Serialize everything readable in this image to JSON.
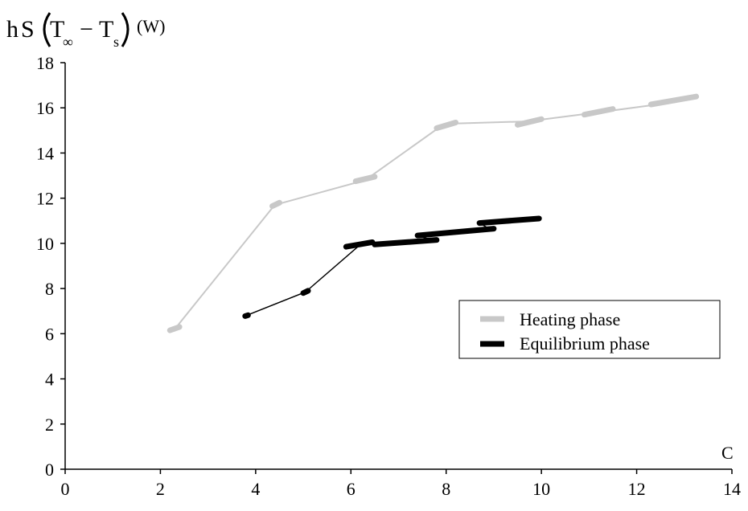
{
  "chart_data": {
    "type": "line",
    "title": "",
    "ylabel": {
      "h": "h",
      "S": "S",
      "T1": "T",
      "sub1": "∞",
      "minus": "−",
      "T2": "T",
      "sub2": "s",
      "unit": "(W)"
    },
    "xlabel": "C",
    "xlim": [
      0,
      14
    ],
    "ylim": [
      0,
      18
    ],
    "x_ticks": [
      0,
      2,
      4,
      6,
      8,
      10,
      12,
      14
    ],
    "y_ticks": [
      0,
      2,
      4,
      6,
      8,
      10,
      12,
      14,
      16,
      18
    ],
    "grid": false,
    "legend_position": "right",
    "series": [
      {
        "name": "Heating phase",
        "color": "#c8c8c8",
        "connector": [
          [
            2.3,
            6.2
          ],
          [
            4.4,
            11.7
          ],
          [
            6.3,
            12.8
          ],
          [
            7.9,
            15.2
          ],
          [
            8.1,
            15.3
          ],
          [
            9.7,
            15.4
          ],
          [
            11.2,
            15.8
          ],
          [
            12.8,
            16.25
          ],
          [
            13.25,
            16.5
          ]
        ],
        "segments": [
          [
            [
              2.2,
              6.15
            ],
            [
              2.4,
              6.3
            ]
          ],
          [
            [
              4.35,
              11.65
            ],
            [
              4.5,
              11.8
            ]
          ],
          [
            [
              6.1,
              12.75
            ],
            [
              6.5,
              12.95
            ]
          ],
          [
            [
              7.8,
              15.1
            ],
            [
              8.2,
              15.35
            ]
          ],
          [
            [
              9.5,
              15.25
            ],
            [
              10.0,
              15.5
            ]
          ],
          [
            [
              10.9,
              15.7
            ],
            [
              11.5,
              15.95
            ]
          ],
          [
            [
              12.3,
              16.15
            ],
            [
              13.25,
              16.5
            ]
          ]
        ]
      },
      {
        "name": "Equilibrium phase",
        "color": "#000000",
        "connector": [
          [
            3.8,
            6.8
          ],
          [
            5.05,
            7.85
          ],
          [
            6.2,
            9.95
          ],
          [
            6.5,
            10.0
          ],
          [
            7.7,
            10.15
          ],
          [
            7.4,
            10.35
          ],
          [
            8.9,
            10.65
          ],
          [
            8.7,
            10.9
          ],
          [
            9.95,
            11.1
          ]
        ],
        "segments": [
          [
            [
              3.78,
              6.78
            ],
            [
              3.84,
              6.82
            ]
          ],
          [
            [
              5.0,
              7.8
            ],
            [
              5.1,
              7.9
            ]
          ],
          [
            [
              5.9,
              9.85
            ],
            [
              6.45,
              10.05
            ]
          ],
          [
            [
              6.5,
              9.95
            ],
            [
              7.8,
              10.15
            ]
          ],
          [
            [
              7.4,
              10.35
            ],
            [
              9.0,
              10.65
            ]
          ],
          [
            [
              8.7,
              10.9
            ],
            [
              9.95,
              11.1
            ]
          ]
        ]
      }
    ]
  }
}
